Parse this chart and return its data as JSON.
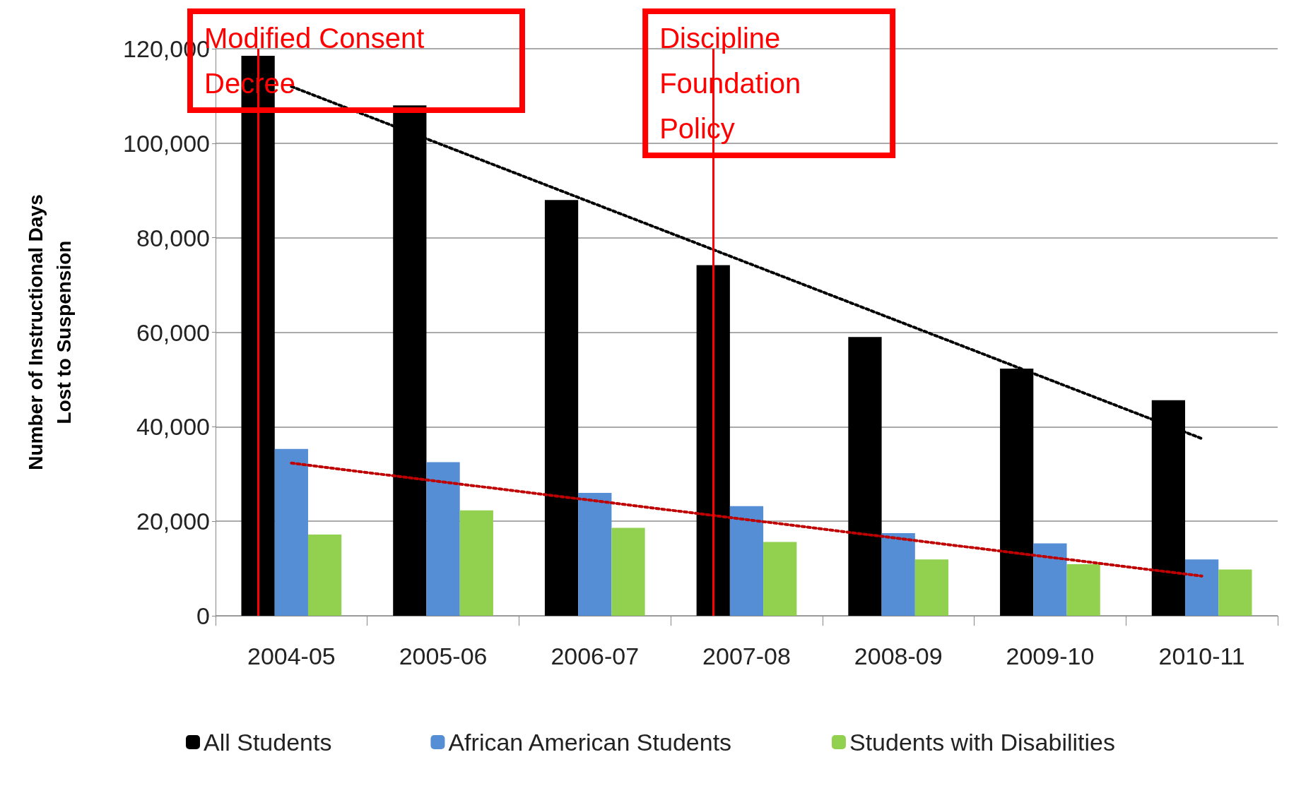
{
  "chart_data": {
    "type": "bar",
    "ylabel": "Number of Instructional Days\nLost to Suspension",
    "categories": [
      "2004-05",
      "2005-06",
      "2006-07",
      "2007-08",
      "2008-09",
      "2009-10",
      "2010-11"
    ],
    "series": [
      {
        "name": "All Students",
        "color": "#000000",
        "values": [
          118500,
          108000,
          88000,
          74200,
          59000,
          52300,
          45600
        ]
      },
      {
        "name": "African American Students",
        "color": "#558ed5",
        "values": [
          35300,
          32500,
          26000,
          23200,
          17500,
          15300,
          11900
        ]
      },
      {
        "name": "Students with Disabilities",
        "color": "#92d050",
        "values": [
          17200,
          22300,
          18600,
          15600,
          11900,
          10900,
          9800
        ]
      },
      {
        "type": "line",
        "color": "#000000",
        "line_style": "dotted",
        "values": [
          112000,
          null,
          null,
          null,
          null,
          null,
          37500
        ]
      },
      {
        "type": "line",
        "color": "#c00000",
        "line_style": "dotted",
        "values": [
          32300,
          null,
          null,
          null,
          null,
          null,
          8400
        ]
      }
    ],
    "ylim": [
      0,
      120000
    ],
    "yticks": [
      0,
      {
        "value": 20000,
        "label": "20,000"
      },
      {
        "value": 40000,
        "label": "40,000"
      },
      {
        "value": 60000,
        "label": "60,000"
      },
      {
        "value": 80000,
        "label": "80,000"
      },
      {
        "value": 100000,
        "label": "100,000"
      },
      {
        "value": 120000,
        "label": "120,000"
      }
    ],
    "grid": "y",
    "legend": "bottom",
    "marker": "none",
    "ref_lines": [
      {
        "axis": "x",
        "value": "2004-05",
        "label": "Modified Consent Decree",
        "color": "#ff0000"
      },
      {
        "axis": "x",
        "value": "2007-08",
        "label": "Discipline Foundation Policy",
        "color": "#ff0000"
      }
    ]
  }
}
